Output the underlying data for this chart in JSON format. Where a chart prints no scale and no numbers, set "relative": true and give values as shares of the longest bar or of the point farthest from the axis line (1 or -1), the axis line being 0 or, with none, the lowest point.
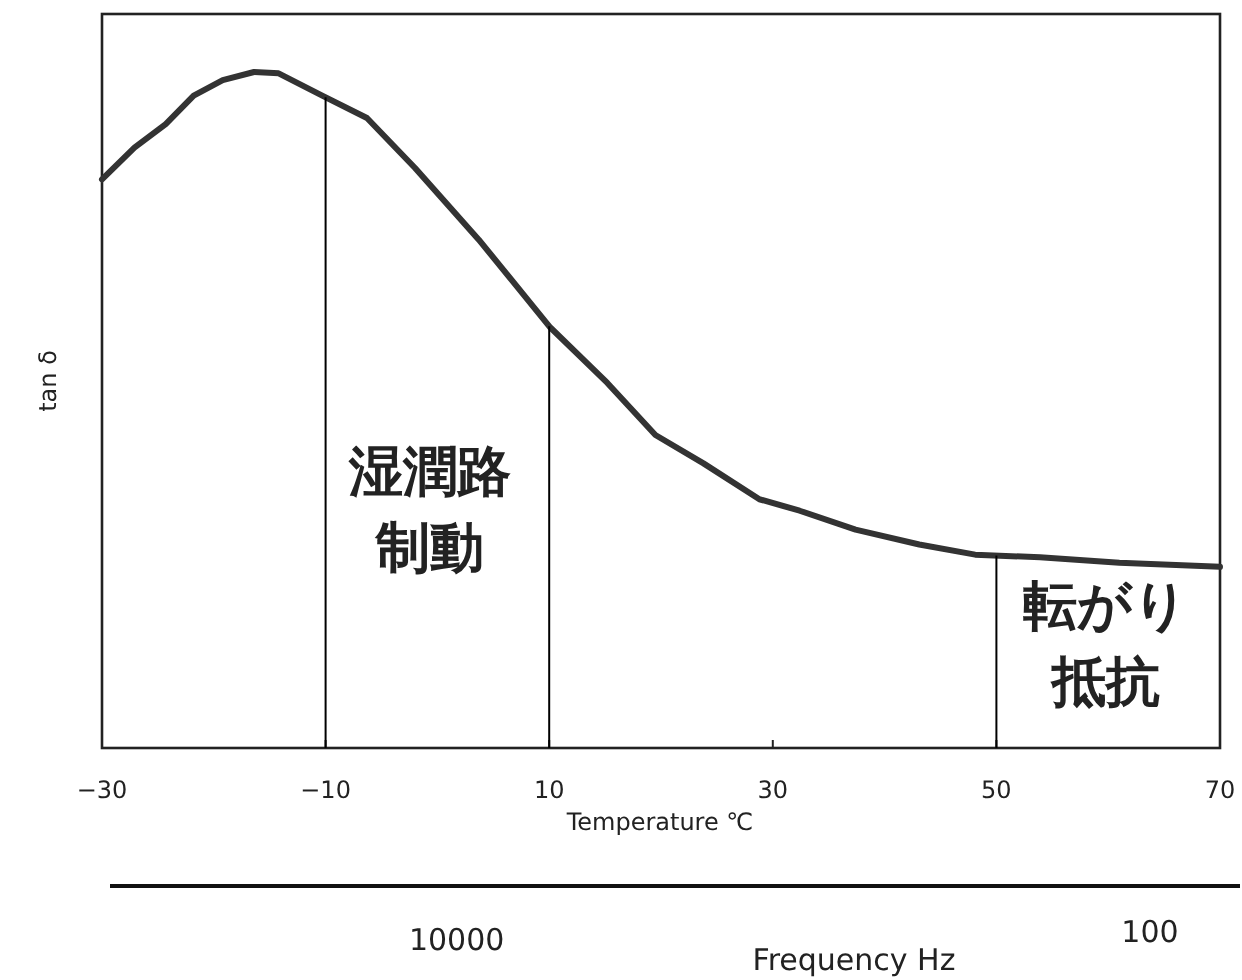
{
  "chart_data": {
    "type": "line",
    "relative": true,
    "xlabel": "Temperature ℃",
    "ylabel": "tan δ",
    "x2label": "Frequency Hz",
    "log": "x2",
    "xlim": [
      -30,
      70
    ],
    "xticks": [
      -30,
      -10,
      10,
      30,
      50,
      70
    ],
    "x2lim": [
      100000,
      55
    ],
    "x2ticks": [
      10000,
      100
    ],
    "grid": false,
    "marker": "none",
    "line_style": "solid",
    "series": [
      {
        "color": "#333333",
        "x": [
          -30,
          -27.1,
          -24.3,
          -21.8,
          -19.2,
          -16.4,
          -14.2,
          -10.3,
          -6.3,
          -2.0,
          3.7,
          10.1,
          15.2,
          19.5,
          23.8,
          28.8,
          32.4,
          37.4,
          43.1,
          48.1,
          53.9,
          61.0,
          70
        ],
        "values": [
          0.841,
          0.888,
          0.923,
          0.965,
          0.988,
          1.0,
          0.998,
          0.965,
          0.932,
          0.858,
          0.752,
          0.622,
          0.54,
          0.463,
          0.421,
          0.368,
          0.351,
          0.323,
          0.301,
          0.286,
          0.282,
          0.274,
          0.268
        ]
      }
    ],
    "ref_lines": [
      {
        "axis": "x",
        "value": -10,
        "color": "#000000"
      },
      {
        "axis": "x",
        "value": 10,
        "color": "#000000"
      },
      {
        "axis": "x",
        "value": 50,
        "color": "#000000"
      }
    ],
    "annotations": [
      "湿潤路",
      "制動",
      "転がり",
      "抵抗"
    ]
  }
}
